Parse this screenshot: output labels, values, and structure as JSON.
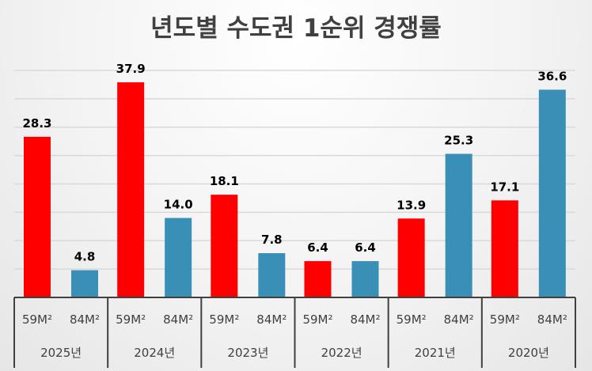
{
  "chart_data": {
    "type": "bar",
    "title": "년도별 수도권 1순위 경쟁률",
    "categories": [
      "2025년",
      "2024년",
      "2023년",
      "2022년",
      "2021년",
      "2020년"
    ],
    "subcategories": [
      "59M²",
      "84M²"
    ],
    "series": [
      {
        "values": [
          28.3,
          37.9,
          18.1,
          6.4,
          13.9,
          17.1
        ],
        "color": "#ff0000"
      },
      {
        "values": [
          4.8,
          14.0,
          7.8,
          6.4,
          25.3,
          36.6
        ],
        "color": "#3a8fb7"
      }
    ],
    "data_labels": [
      [
        "28.3",
        "37.9",
        "18.1",
        "6.4",
        "13.9",
        "17.1"
      ],
      [
        "4.8",
        "14.0",
        "7.8",
        "6.4",
        "25.3",
        "36.6"
      ]
    ],
    "ylim": [
      0,
      40
    ],
    "ytick_step": 5,
    "grid": true,
    "legend": "none"
  }
}
